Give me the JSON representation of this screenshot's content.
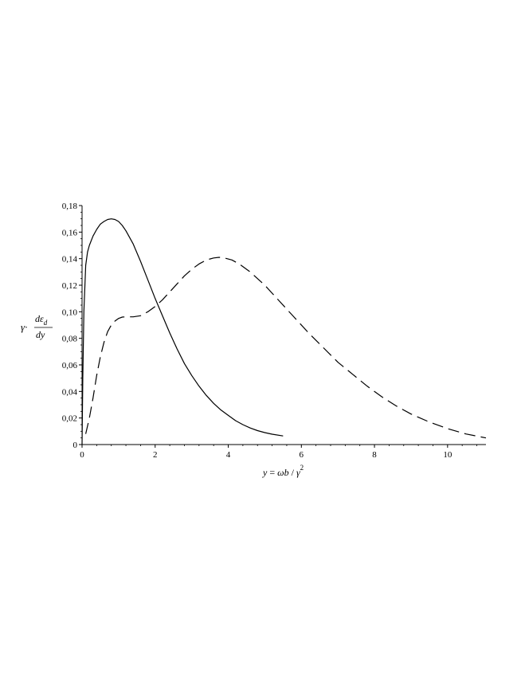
{
  "chart_data": {
    "type": "line",
    "xlabel": {
      "lhs": "y",
      "eq": " = ",
      "omega_b": "ωb",
      "slash": " / ",
      "gamma": "γ",
      "sup": "2"
    },
    "ylabel": {
      "gamma": "γ·",
      "numerator": "dε",
      "subscript": "d",
      "denominator": "dy"
    },
    "xlim": [
      0,
      11.05
    ],
    "ylim": [
      0,
      0.18
    ],
    "x_ticks": [
      {
        "value": 0,
        "label": "0"
      },
      {
        "value": 2,
        "label": "2"
      },
      {
        "value": 4,
        "label": "4"
      },
      {
        "value": 6,
        "label": "6"
      },
      {
        "value": 8,
        "label": "8"
      },
      {
        "value": 10,
        "label": "10"
      }
    ],
    "y_ticks": [
      {
        "value": 0,
        "label": "0"
      },
      {
        "value": 0.02,
        "label": "0,02"
      },
      {
        "value": 0.04,
        "label": "0,04"
      },
      {
        "value": 0.06,
        "label": "0,06"
      },
      {
        "value": 0.08,
        "label": "0,08"
      },
      {
        "value": 0.1,
        "label": "0,10"
      },
      {
        "value": 0.12,
        "label": "0,12"
      },
      {
        "value": 0.14,
        "label": "0,14"
      },
      {
        "value": 0.16,
        "label": "0,16"
      },
      {
        "value": 0.18,
        "label": "0,18"
      }
    ],
    "grid": false,
    "legend": "none",
    "series": [
      {
        "style": "solid",
        "color": "#000000",
        "x": [
          0.0,
          0.02,
          0.05,
          0.1,
          0.15,
          0.2,
          0.3,
          0.4,
          0.5,
          0.6,
          0.7,
          0.8,
          0.9,
          1.0,
          1.1,
          1.2,
          1.4,
          1.6,
          1.8,
          2.0,
          2.2,
          2.4,
          2.6,
          2.8,
          3.0,
          3.2,
          3.4,
          3.6,
          3.8,
          4.0,
          4.2,
          4.4,
          4.6,
          4.8,
          5.0,
          5.2,
          5.5
        ],
        "y": [
          0.0,
          0.05,
          0.1,
          0.135,
          0.145,
          0.15,
          0.157,
          0.162,
          0.166,
          0.168,
          0.1695,
          0.17,
          0.1695,
          0.168,
          0.165,
          0.161,
          0.151,
          0.138,
          0.124,
          0.11,
          0.097,
          0.084,
          0.072,
          0.061,
          0.052,
          0.044,
          0.037,
          0.031,
          0.026,
          0.022,
          0.018,
          0.015,
          0.0125,
          0.0105,
          0.009,
          0.0078,
          0.0065
        ]
      },
      {
        "style": "dashed",
        "color": "#000000",
        "x": [
          0.1,
          0.2,
          0.3,
          0.4,
          0.5,
          0.6,
          0.7,
          0.8,
          0.9,
          1.0,
          1.1,
          1.2,
          1.4,
          1.6,
          1.8,
          2.0,
          2.2,
          2.4,
          2.6,
          2.8,
          3.0,
          3.2,
          3.4,
          3.6,
          3.75,
          3.9,
          4.1,
          4.3,
          4.6,
          5.0,
          5.4,
          5.8,
          6.2,
          6.6,
          7.0,
          7.4,
          7.8,
          8.2,
          8.6,
          9.0,
          9.5,
          10.0,
          10.5,
          11.05
        ],
        "y": [
          0.008,
          0.02,
          0.035,
          0.052,
          0.066,
          0.077,
          0.085,
          0.09,
          0.093,
          0.095,
          0.096,
          0.0962,
          0.0962,
          0.097,
          0.1,
          0.104,
          0.109,
          0.115,
          0.121,
          0.127,
          0.132,
          0.136,
          0.139,
          0.1405,
          0.141,
          0.1405,
          0.139,
          0.136,
          0.13,
          0.12,
          0.108,
          0.096,
          0.084,
          0.073,
          0.062,
          0.053,
          0.044,
          0.036,
          0.029,
          0.023,
          0.017,
          0.012,
          0.008,
          0.005
        ]
      }
    ]
  }
}
